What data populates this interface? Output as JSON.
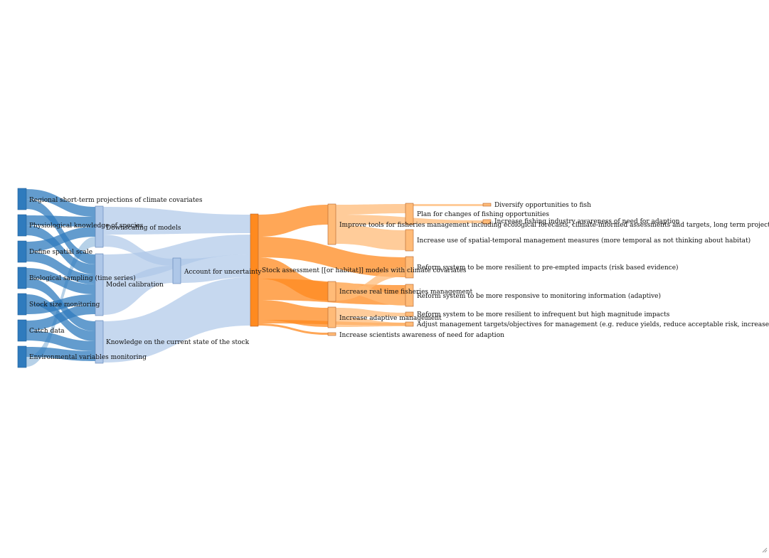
{
  "colors": {
    "blue_node": "#2f7bbd",
    "blue_node_dark": "#1f5f97",
    "blue_link": "#2f7bbd",
    "blue_link_light": "#aec7e8",
    "orange_node": "#ff8a1f",
    "orange_link": "#ff8a1f",
    "orange_node_light": "#ffbb78",
    "orange_link_light": "#ffbb78",
    "light_node": "#aec7e8"
  },
  "diagram": {
    "type": "sankey",
    "nodes": [
      {
        "id": "n1",
        "label": "Regional short-term projections of climate covariates",
        "color": "blue_node"
      },
      {
        "id": "n2",
        "label": "Physiological knowledge of species",
        "color": "blue_node"
      },
      {
        "id": "n3",
        "label": "Define spatial scale",
        "color": "blue_node"
      },
      {
        "id": "n4",
        "label": "Biological sampling (time series)",
        "color": "blue_node"
      },
      {
        "id": "n5",
        "label": "Stock size monitoring",
        "color": "blue_node"
      },
      {
        "id": "n6",
        "label": "Catch data",
        "color": "blue_node"
      },
      {
        "id": "n7",
        "label": "Environmental variables monitoring",
        "color": "blue_node"
      },
      {
        "id": "n8",
        "label": "Downscaling of models",
        "color": "light_node"
      },
      {
        "id": "n9",
        "label": "Model calibration",
        "color": "light_node"
      },
      {
        "id": "n10",
        "label": "Knowledge on the current state of the stock",
        "color": "light_node"
      },
      {
        "id": "n11",
        "label": "Account for uncertainty",
        "color": "light_node"
      },
      {
        "id": "n12",
        "label": "Stock assessment [[or habitat]] models with climate covariates",
        "color": "orange_node"
      },
      {
        "id": "n13",
        "label": "Improve tools for fisheries management including ecological forecasts, climate-informed assessments and targets, long term projections",
        "color": "orange_node_light"
      },
      {
        "id": "n14",
        "label": "Increase real time fisheries management",
        "color": "orange_node_light"
      },
      {
        "id": "n15",
        "label": "Increase adaptive management",
        "color": "orange_node_light"
      },
      {
        "id": "n16",
        "label": "Increase scientists awareness of need for adaption",
        "color": "orange_node_light"
      },
      {
        "id": "n17",
        "label": "Plan for changes of fishing opportunities",
        "color": "orange_node_light"
      },
      {
        "id": "n18",
        "label": "Increase use of spatial-temporal management measures (more temporal as not thinking about habitat)",
        "color": "orange_node_light"
      },
      {
        "id": "n19",
        "label": "Reform system to be more resilient to pre-empted impacts (risk based evidence)",
        "color": "orange_node_light"
      },
      {
        "id": "n20",
        "label": "Reform system to be more responsive to monitoring information (adaptive)",
        "color": "orange_node_light"
      },
      {
        "id": "n21",
        "label": "Reform system to be more resilient to infrequent but high magnitude impacts",
        "color": "orange_node_light"
      },
      {
        "id": "n22",
        "label": "Adjust management targets/objectives for management (e.g. reduce yields, reduce acceptable risk, increase precautionary buffers)",
        "color": "orange_node_light"
      },
      {
        "id": "n23",
        "label": "Diversify opportunities to fish",
        "color": "orange_node_light"
      },
      {
        "id": "n24",
        "label": "Increase fishing industry awareness of need for adaption",
        "color": "orange_node_light"
      }
    ]
  }
}
